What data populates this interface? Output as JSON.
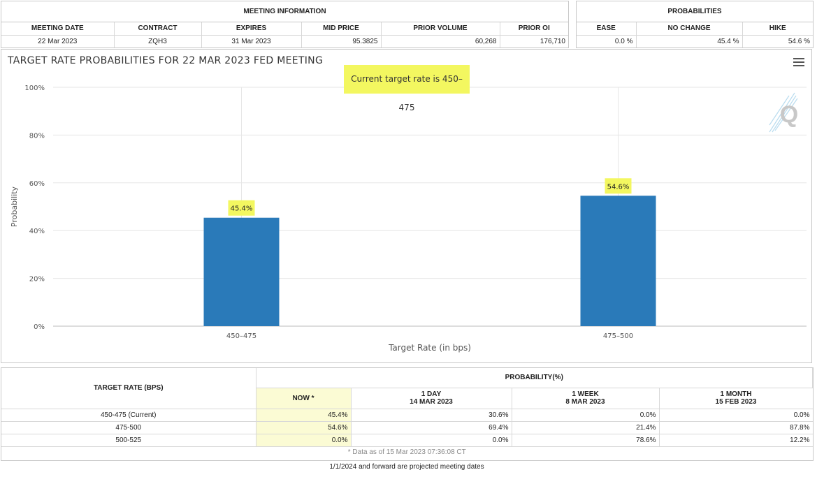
{
  "meeting_info": {
    "title": "MEETING INFORMATION",
    "headers": [
      "MEETING DATE",
      "CONTRACT",
      "EXPIRES",
      "MID PRICE",
      "PRIOR VOLUME",
      "PRIOR OI"
    ],
    "values": [
      "22 Mar 2023",
      "ZQH3",
      "31 Mar 2023",
      "95.3825",
      "60,268",
      "176,710"
    ]
  },
  "probabilities": {
    "title": "PROBABILITIES",
    "headers": [
      "EASE",
      "NO CHANGE",
      "HIKE"
    ],
    "values": [
      "0.0 %",
      "45.4 %",
      "54.6 %"
    ]
  },
  "chart_title": "TARGET RATE PROBABILITIES FOR 22 MAR 2023 FED MEETING",
  "annotation": "Current target rate is 450–475",
  "icons": {
    "menu": "hamburger-menu-icon",
    "watermark": "quikstrike-logo-icon"
  },
  "colors": {
    "bar": "#2a7ab9",
    "highlight": "#f3f760"
  },
  "chart_data": {
    "type": "bar",
    "title": "TARGET RATE PROBABILITIES FOR 22 MAR 2023 FED MEETING",
    "categories": [
      "450–475",
      "475–500"
    ],
    "values": [
      45.4,
      54.6
    ],
    "data_labels": [
      "45.4%",
      "54.6%"
    ],
    "xlabel": "Target Rate (in bps)",
    "ylabel": "Probability",
    "ylim": [
      0,
      100
    ],
    "yticks": [
      0,
      20,
      40,
      60,
      80,
      100
    ],
    "ytick_labels": [
      "0%",
      "20%",
      "40%",
      "60%",
      "80%",
      "100%"
    ],
    "grid": true,
    "legend": "none"
  },
  "prob_table": {
    "target_header": "TARGET RATE (BPS)",
    "prob_header": "PROBABILITY(%)",
    "col_now": "NOW *",
    "col_1day": [
      "1 DAY",
      "14 MAR 2023"
    ],
    "col_1week": [
      "1 WEEK",
      "8 MAR 2023"
    ],
    "col_1month": [
      "1 MONTH",
      "15 FEB 2023"
    ],
    "rows": [
      {
        "rate": "450-475 (Current)",
        "now": "45.4%",
        "d1": "30.6%",
        "w1": "0.0%",
        "m1": "0.0%"
      },
      {
        "rate": "475-500",
        "now": "54.6%",
        "d1": "69.4%",
        "w1": "21.4%",
        "m1": "87.8%"
      },
      {
        "rate": "500-525",
        "now": "0.0%",
        "d1": "0.0%",
        "w1": "78.6%",
        "m1": "12.2%"
      }
    ],
    "footnote": "* Data as of 15 Mar 2023 07:36:08 CT"
  },
  "projected_note": "1/1/2024 and forward are projected meeting dates"
}
